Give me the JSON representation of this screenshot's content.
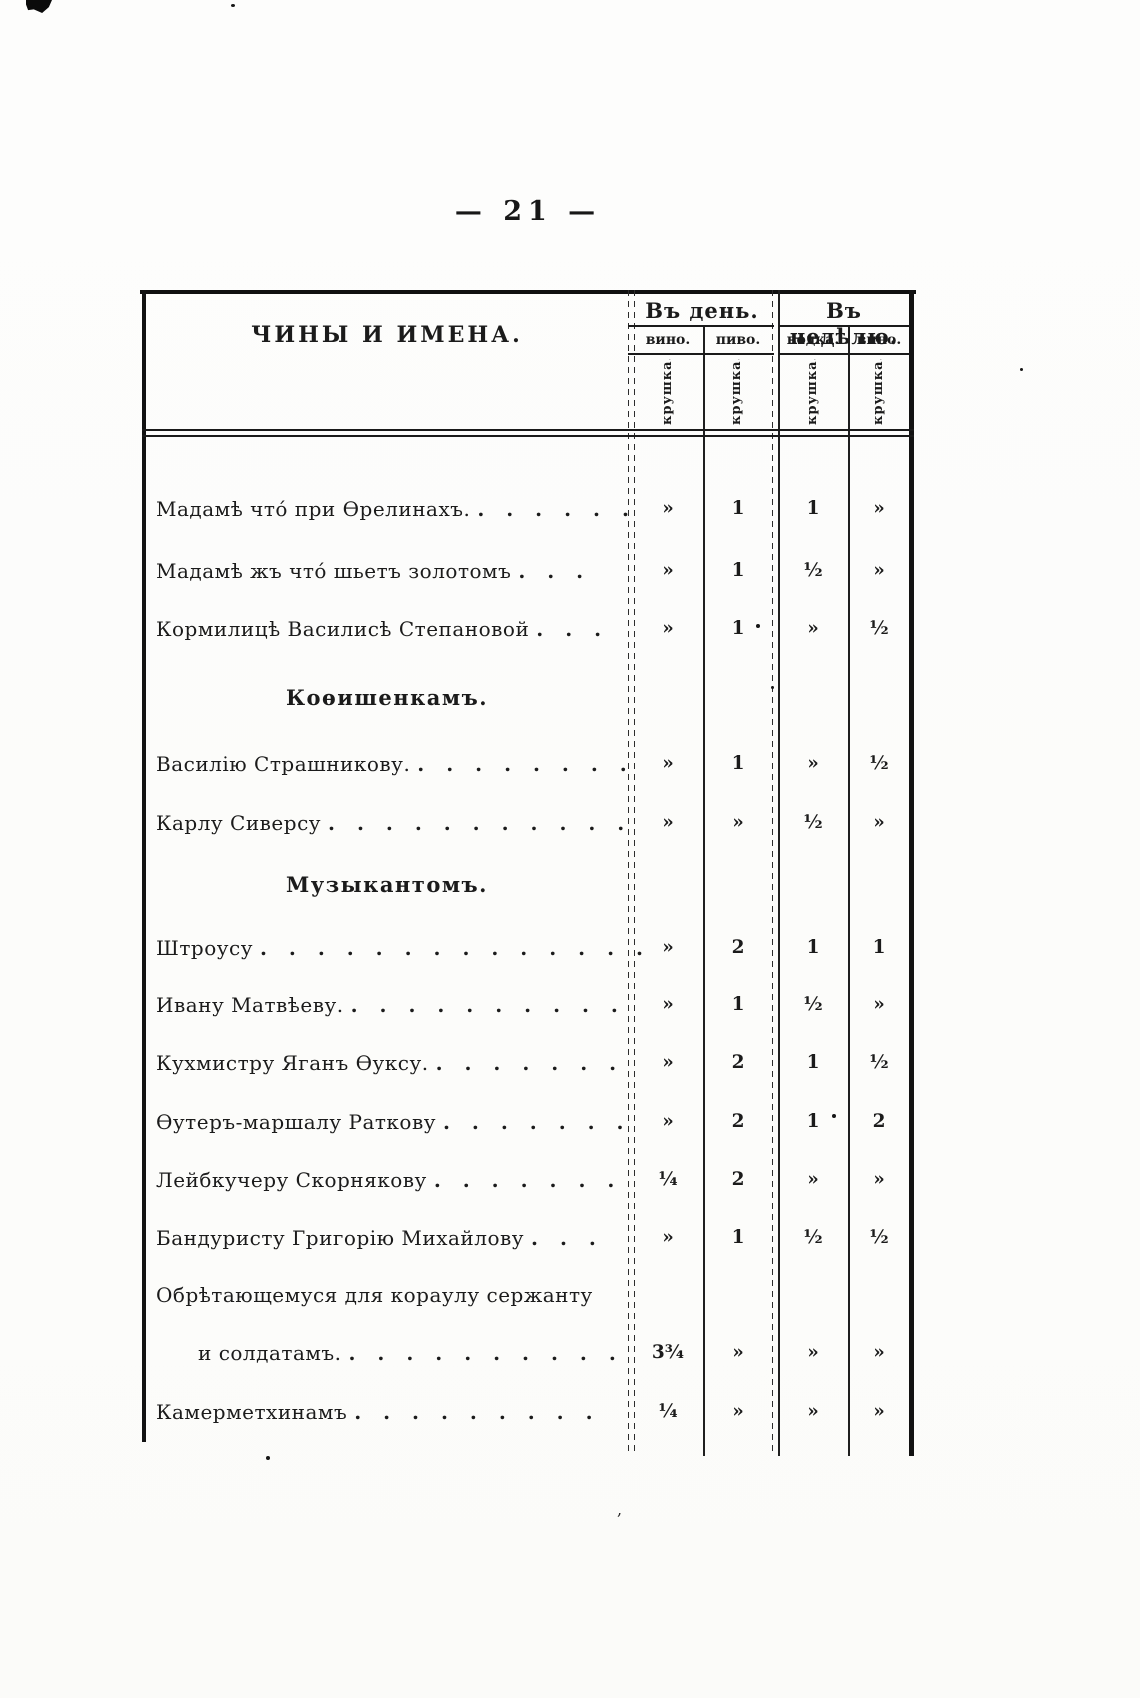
{
  "page": {
    "number_display": "— 21 —"
  },
  "table": {
    "names_header": "ЧИНЫ И ИМЕНА.",
    "unit_label": "крушка.",
    "groups": [
      {
        "label": "Въ день.",
        "columns": [
          "вино.",
          "пиво."
        ]
      },
      {
        "label": "Въ недѣлю.",
        "columns": [
          "водка.",
          "вино."
        ]
      }
    ],
    "rows": [
      {
        "type": "entry",
        "label": "Мадамѣ что́ при Ѳрелинахъ.",
        "dots": ". . . . . .",
        "values": [
          "»",
          "1",
          "1",
          "»"
        ]
      },
      {
        "type": "entry",
        "label": "Мадамѣ жъ что́ шьетъ золотомъ",
        "dots": ". . .",
        "values": [
          "»",
          "1",
          "½",
          "»"
        ]
      },
      {
        "type": "entry",
        "label": "Кормилицѣ Василисѣ Степановой",
        "dots": ". . .",
        "values": [
          "»",
          "1",
          "»",
          "½"
        ]
      },
      {
        "type": "section",
        "label": "Коѳишенкамъ."
      },
      {
        "type": "entry",
        "label": "Василію Страшникову.",
        "dots": ". . . . . . . .",
        "values": [
          "»",
          "1",
          "»",
          "½"
        ]
      },
      {
        "type": "entry",
        "label": "Карлу Сиверсу",
        "dots": ". . . . . . . . . . .",
        "values": [
          "»",
          "»",
          "½",
          "»"
        ]
      },
      {
        "type": "section",
        "label": "Музыкантомъ."
      },
      {
        "type": "entry",
        "label": "Штроусу",
        "dots": ". . . . . . . . . . . . . .",
        "values": [
          "»",
          "2",
          "1",
          "1"
        ]
      },
      {
        "type": "entry",
        "label": "Ивану Матвѣеву.",
        "dots": ". . . . . . . . . .",
        "values": [
          "»",
          "1",
          "½",
          "»"
        ]
      },
      {
        "type": "entry",
        "label": "Кухмистру Яганъ Ѳуксу.",
        "dots": ". . . . . . .",
        "values": [
          "»",
          "2",
          "1",
          "½"
        ]
      },
      {
        "type": "entry",
        "label": "Ѳутеръ-маршалу Раткову",
        "dots": ". . . . . . .",
        "values": [
          "»",
          "2",
          "1",
          "2"
        ]
      },
      {
        "type": "entry",
        "label": "Лейбкучеру Скорнякову",
        "dots": ". . . . . . .",
        "values": [
          "¼",
          "2",
          "»",
          "»"
        ]
      },
      {
        "type": "entry",
        "label": "Бандуристу Григорію Михайлову",
        "dots": ". . .",
        "values": [
          "»",
          "1",
          "½",
          "½"
        ]
      },
      {
        "type": "continuation",
        "label": "Обрѣтающемуся для кораулу сержанту"
      },
      {
        "type": "entry",
        "indent": true,
        "label": "и солдатамъ.",
        "dots": ". . . . . . . . . .",
        "values": [
          "3¾",
          "»",
          "»",
          "»"
        ]
      },
      {
        "type": "entry",
        "label": "Камерметхинамъ",
        "dots": ". . . . . . . . .",
        "values": [
          "¼",
          "»",
          "»",
          "»"
        ]
      }
    ]
  },
  "colors": {
    "ink": "#1b1b1b",
    "paper": "#fcfcfa"
  }
}
